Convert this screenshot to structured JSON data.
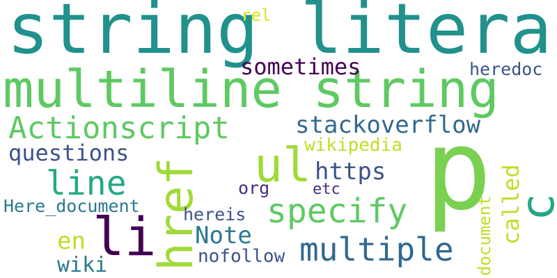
{
  "words": [
    {
      "key": "string-literal",
      "text": "string literal",
      "color": "#21918c"
    },
    {
      "key": "multiline-string",
      "text": "multiline string",
      "color": "#5ec962"
    },
    {
      "key": "p",
      "text": "p",
      "color": "#7ad151"
    },
    {
      "key": "href",
      "text": "href",
      "color": "#a0da39"
    },
    {
      "key": "ul",
      "text": "ul",
      "color": "#a0da39"
    },
    {
      "key": "li",
      "text": "li",
      "color": "#440154"
    },
    {
      "key": "c",
      "text": "c",
      "color": "#22a884"
    },
    {
      "key": "actionscript",
      "text": "Actionscript",
      "color": "#5ec962"
    },
    {
      "key": "specify",
      "text": "specify",
      "color": "#5ec962"
    },
    {
      "key": "multiple",
      "text": "multiple",
      "color": "#31688e"
    },
    {
      "key": "line",
      "text": "line",
      "color": "#22a884"
    },
    {
      "key": "stackoverflow",
      "text": "stackoverflow",
      "color": "#31688e"
    },
    {
      "key": "sometimes",
      "text": "sometimes",
      "color": "#440154"
    },
    {
      "key": "questions",
      "text": "questions",
      "color": "#3b528b"
    },
    {
      "key": "https",
      "text": "https",
      "color": "#3b528b"
    },
    {
      "key": "note",
      "text": "Note",
      "color": "#2a788e"
    },
    {
      "key": "called",
      "text": "called",
      "color": "#bddf26"
    },
    {
      "key": "en",
      "text": "en",
      "color": "#bddf26"
    },
    {
      "key": "wikipedia",
      "text": "wikipedia",
      "color": "#bddf26"
    },
    {
      "key": "here-document",
      "text": "Here_document",
      "color": "#2a788e"
    },
    {
      "key": "heredoc",
      "text": "heredoc",
      "color": "#3b528b"
    },
    {
      "key": "org",
      "text": "org",
      "color": "#472d7b"
    },
    {
      "key": "etc",
      "text": "etc",
      "color": "#472d7b"
    },
    {
      "key": "hereis",
      "text": "hereis",
      "color": "#3b528b"
    },
    {
      "key": "nofollow",
      "text": "nofollow",
      "color": "#3b528b"
    },
    {
      "key": "wiki",
      "text": "wiki",
      "color": "#2a788e"
    },
    {
      "key": "document",
      "text": "document",
      "color": "#bddf26"
    },
    {
      "key": "rel",
      "text": "rel",
      "color": "#dde318"
    }
  ]
}
